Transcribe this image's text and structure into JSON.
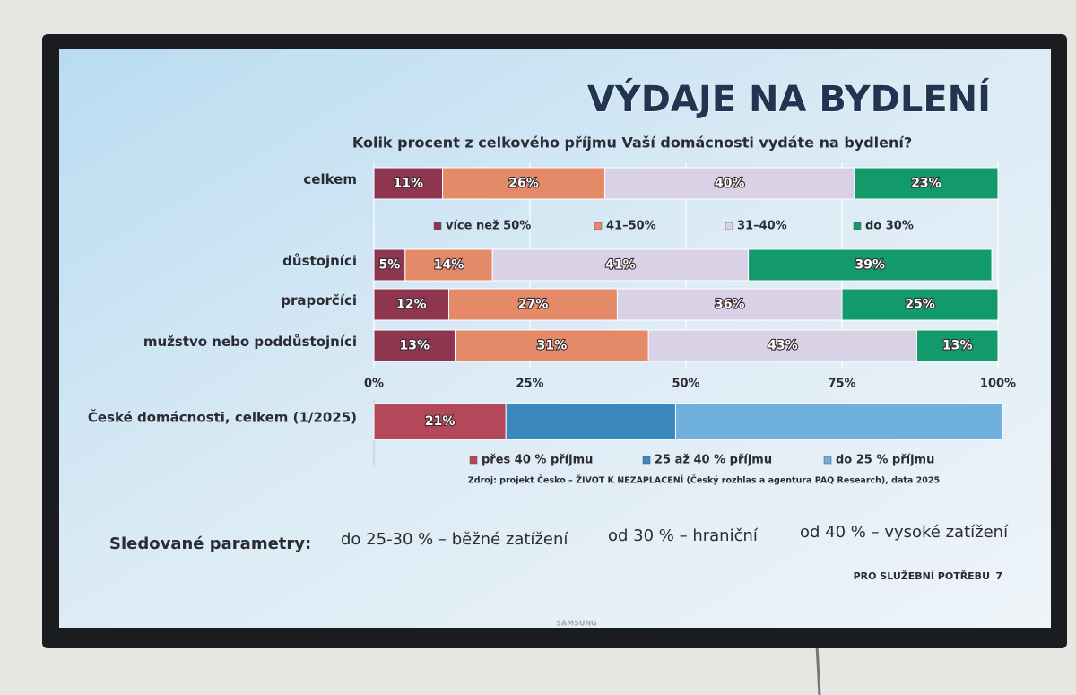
{
  "slide": {
    "title": "VÝDAJE NA BYDLENÍ",
    "subtitle": "Kolik procent z celkového příjmu Vaší domácnosti vydáte na bydlení?",
    "source": "Zdroj: projekt Česko – ŽIVOT K NEZAPLACENÍ (Český rozhlas a agentura PAQ Research), data 2025",
    "parameters_label": "Sledované parametry:",
    "parameters": [
      "do 25-30 % – běžné zatížení",
      "od 30 % – hraniční",
      "od 40 % – vysoké zatížení"
    ],
    "footer": "PRO SLUŽEBNÍ POTŘEBU",
    "page_number": "7",
    "brand": "SAMSUNG"
  },
  "chart_data": [
    {
      "type": "bar",
      "orientation": "horizontal",
      "stacked": true,
      "grid": true,
      "categories": [
        "celkem",
        "důstojníci",
        "praporčíci",
        "mužstvo nebo poddůstojníci"
      ],
      "series": [
        {
          "name": "více než 50%",
          "color": "#8e3550",
          "values": [
            11,
            5,
            12,
            13
          ],
          "value_labels": [
            "11%",
            "5%",
            "12%",
            "13%"
          ]
        },
        {
          "name": "41–50%",
          "color": "#e48a68",
          "values": [
            26,
            14,
            27,
            31
          ],
          "value_labels": [
            "26%",
            "14%",
            "27%",
            "31%"
          ]
        },
        {
          "name": "31–40%",
          "color": "#d9d2e6",
          "values": [
            40,
            41,
            36,
            43
          ],
          "value_labels": [
            "40%",
            "41%",
            "36%",
            "43%"
          ]
        },
        {
          "name": "do 30%",
          "color": "#139a6b",
          "values": [
            23,
            39,
            25,
            13
          ],
          "value_labels": [
            "23%",
            "39%",
            "25%",
            "13%"
          ]
        }
      ],
      "xlim": [
        0,
        100
      ],
      "xticks": [
        {
          "value": 0,
          "label": "0%"
        },
        {
          "value": 25,
          "label": "25%"
        },
        {
          "value": 50,
          "label": "50%"
        },
        {
          "value": 75,
          "label": "75%"
        },
        {
          "value": 100,
          "label": "100%"
        }
      ]
    },
    {
      "type": "bar",
      "orientation": "horizontal",
      "stacked": true,
      "grid": false,
      "categories": [
        "České domácnosti, celkem (1/2025)"
      ],
      "series": [
        {
          "name": "přes 40 % příjmu",
          "color": "#b5475a",
          "values": [
            21
          ],
          "value_labels": [
            "21%"
          ]
        },
        {
          "name": "25 až 40 % příjmu",
          "color": "#3a88bd",
          "values": [
            27
          ]
        },
        {
          "name": "do 25 % příjmu",
          "color": "#6fb0dc",
          "values": [
            52
          ]
        }
      ],
      "xlim": [
        0,
        100
      ]
    }
  ]
}
